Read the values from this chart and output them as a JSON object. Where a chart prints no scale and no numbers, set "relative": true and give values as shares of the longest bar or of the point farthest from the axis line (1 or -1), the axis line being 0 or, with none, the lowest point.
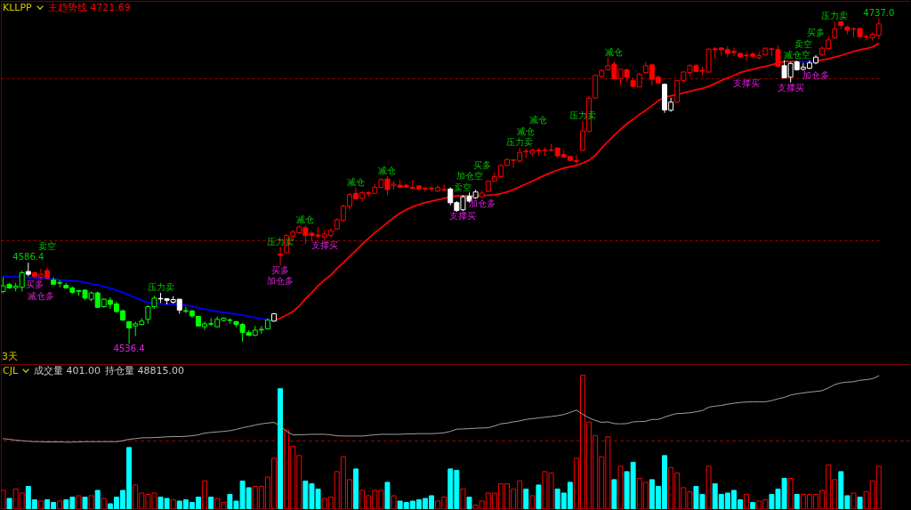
{
  "chart_data": [
    {
      "type": "candlestick",
      "title": "KLLPP",
      "legend": "top left",
      "grid": "y",
      "tick_labels": false,
      "categories": [
        null,
        null,
        null,
        null,
        null,
        null,
        null,
        null,
        null,
        null,
        null,
        null,
        null,
        null,
        null,
        null,
        null,
        null,
        null,
        null,
        null,
        null,
        null,
        null,
        null,
        null,
        null,
        null,
        null,
        null,
        null,
        null,
        null,
        null,
        null,
        null,
        null,
        null,
        null,
        null,
        null,
        null,
        null,
        null,
        null,
        null,
        null,
        null,
        null,
        null,
        null,
        null,
        null,
        null,
        null,
        null,
        null,
        null,
        null,
        null,
        null,
        null,
        null,
        null,
        null,
        null,
        null,
        null,
        null,
        null,
        null,
        null,
        null,
        null,
        null,
        null,
        null,
        null,
        null,
        null,
        null,
        null,
        null,
        null,
        null,
        null,
        null,
        null,
        null,
        null,
        null,
        null,
        null,
        null,
        null,
        null,
        null,
        null,
        null,
        null,
        null,
        null,
        null,
        null,
        null,
        null,
        null,
        null,
        null,
        null,
        null,
        null,
        null,
        null,
        null,
        null,
        null,
        null,
        null,
        null,
        null,
        null,
        null,
        null,
        null,
        null,
        null,
        null,
        null,
        null,
        null,
        null,
        null,
        null,
        null,
        null,
        null,
        null,
        null,
        null
      ],
      "ylim": [
        4525,
        4748
      ],
      "yticks": [
        {
          "value": 4600,
          "label": null
        },
        {
          "value": 4700,
          "label": null
        }
      ],
      "ohlc": [
        [
          4568.7,
          4577.5,
          4567.6,
          4572.2
        ],
        [
          4573.1,
          4574.0,
          4570.4,
          4570.8
        ],
        [
          4571.0,
          4574.0,
          4568.7,
          4572.0
        ],
        [
          4571.3,
          4581.6,
          4568.7,
          4580.2
        ],
        [
          4581.0,
          4586.4,
          4578.0,
          4579.3
        ],
        [
          4580.2,
          4581.0,
          4577.0,
          4578.0
        ],
        [
          4577.5,
          4582.8,
          4575.6,
          4579.3
        ],
        [
          4581.6,
          4583.4,
          4576.3,
          4577.0
        ],
        [
          4575.7,
          4577.5,
          4572.7,
          4573.1
        ],
        [
          4573.8,
          4575.7,
          4571.3,
          4574.1
        ],
        [
          4572.5,
          4574.0,
          4570.4,
          4570.8
        ],
        [
          4570.8,
          4571.7,
          4567.4,
          4568.1
        ],
        [
          4568.8,
          4569.5,
          4566.0,
          4569.2
        ],
        [
          4569.5,
          4569.9,
          4563.3,
          4564.6
        ],
        [
          4563.9,
          4568.7,
          4562.5,
          4567.8
        ],
        [
          4567.8,
          4568.7,
          4558.6,
          4558.9
        ],
        [
          4559.3,
          4564.6,
          4558.6,
          4563.9
        ],
        [
          4563.3,
          4565.1,
          4558.0,
          4560.7
        ],
        [
          4561.0,
          4562.5,
          4555.4,
          4556.3
        ],
        [
          4556.8,
          4557.5,
          4550.4,
          4551.0
        ],
        [
          4550.1,
          4550.4,
          4536.4,
          4546.2
        ],
        [
          4547.4,
          4550.1,
          4541.2,
          4548.7
        ],
        [
          4548.3,
          4552.2,
          4547.9,
          4550.4
        ],
        [
          4551.5,
          4560.3,
          4548.7,
          4559.3
        ],
        [
          4559.3,
          4566.0,
          4558.0,
          4564.6
        ],
        [
          4564.4,
          4567.8,
          4561.6,
          4564.1
        ],
        [
          4564.2,
          4564.6,
          4560.7,
          4563.2
        ],
        [
          4562.1,
          4565.7,
          4561.0,
          4563.7
        ],
        [
          4563.9,
          4564.2,
          4555.0,
          4557.2
        ],
        [
          4556.8,
          4559.3,
          4555.4,
          4556.4
        ],
        [
          4556.6,
          4557.5,
          4552.2,
          4553.6
        ],
        [
          4553.3,
          4553.6,
          4546.9,
          4547.4
        ],
        [
          4546.9,
          4550.1,
          4544.8,
          4548.7
        ],
        [
          4548.8,
          4552.2,
          4547.4,
          4548.5
        ],
        [
          4546.9,
          4553.3,
          4546.5,
          4551.5
        ],
        [
          4550.8,
          4552.7,
          4550.1,
          4552.2
        ],
        [
          4551.1,
          4552.2,
          4548.7,
          4550.8
        ],
        [
          4550.1,
          4550.4,
          4546.5,
          4548.3
        ],
        [
          4548.3,
          4549.2,
          4537.7,
          4543.3
        ],
        [
          4543.3,
          4544.8,
          4541.2,
          4541.6
        ],
        [
          4541.6,
          4547.4,
          4541.2,
          4544.8
        ],
        [
          4544.9,
          4547.4,
          4542.6,
          4545.3
        ],
        [
          4545.6,
          4552.2,
          4545.1,
          4551.0
        ],
        [
          4550.4,
          4555.4,
          4550.1,
          4554.9
        ],
        [
          4591.7,
          4596.1,
          4584.6,
          4591.0
        ],
        [
          4592.6,
          4604.1,
          4592.2,
          4603.2
        ],
        [
          4602.8,
          4606.7,
          4599.6,
          4605.3
        ],
        [
          4604.9,
          4609.4,
          4604.1,
          4608.5
        ],
        [
          4608.0,
          4609.7,
          4597.9,
          4603.2
        ],
        [
          4604.6,
          4605.8,
          4600.0,
          4603.2
        ],
        [
          4603.5,
          4608.5,
          4601.4,
          4602.8
        ],
        [
          4602.3,
          4606.7,
          4600.5,
          4604.1
        ],
        [
          4603.2,
          4607.6,
          4602.3,
          4606.2
        ],
        [
          4607.2,
          4613.8,
          4606.7,
          4612.9
        ],
        [
          4612.6,
          4622.1,
          4612.0,
          4621.4
        ],
        [
          4621.2,
          4629.4,
          4619.1,
          4628.5
        ],
        [
          4629.2,
          4632.9,
          4625.3,
          4625.8
        ],
        [
          4626.2,
          4630.6,
          4624.4,
          4629.7
        ],
        [
          4629.0,
          4630.6,
          4627.1,
          4629.6
        ],
        [
          4629.2,
          4635.0,
          4628.8,
          4632.9
        ],
        [
          4632.9,
          4638.6,
          4632.4,
          4637.7
        ],
        [
          4638.1,
          4640.0,
          4628.0,
          4631.5
        ],
        [
          4634.2,
          4636.8,
          4631.5,
          4634.9
        ],
        [
          4634.3,
          4637.7,
          4632.4,
          4632.9
        ],
        [
          4634.2,
          4635.0,
          4632.7,
          4633.1
        ],
        [
          4632.9,
          4637.7,
          4632.0,
          4632.4
        ],
        [
          4633.8,
          4634.2,
          4631.1,
          4631.9
        ],
        [
          4632.4,
          4633.3,
          4630.3,
          4631.9
        ],
        [
          4632.4,
          4633.6,
          4630.3,
          4631.9
        ],
        [
          4630.6,
          4634.5,
          4630.1,
          4632.9
        ],
        [
          4631.3,
          4634.5,
          4630.1,
          4631.7
        ],
        [
          4631.9,
          4632.9,
          4621.8,
          4623.4
        ],
        [
          4623.5,
          4624.4,
          4617.9,
          4618.6
        ],
        [
          4619.1,
          4628.1,
          4618.2,
          4627.1
        ],
        [
          4627.4,
          4629.7,
          4623.5,
          4624.4
        ],
        [
          4626.5,
          4631.5,
          4625.8,
          4630.1
        ],
        [
          4627.1,
          4631.0,
          4626.2,
          4629.4
        ],
        [
          4630.6,
          4637.2,
          4630.1,
          4636.8
        ],
        [
          4636.8,
          4642.1,
          4636.5,
          4639.5
        ],
        [
          4639.5,
          4647.1,
          4639.1,
          4646.5
        ],
        [
          4646.5,
          4651.0,
          4646.0,
          4650.1
        ],
        [
          4649.6,
          4650.1,
          4644.8,
          4649.9
        ],
        [
          4649.2,
          4657.2,
          4648.1,
          4654.5
        ],
        [
          4655.2,
          4657.0,
          4651.0,
          4654.9
        ],
        [
          4654.0,
          4656.8,
          4651.9,
          4655.9
        ],
        [
          4655.8,
          4657.4,
          4652.7,
          4655.4
        ],
        [
          4655.6,
          4657.7,
          4652.2,
          4655.9
        ],
        [
          4655.8,
          4659.8,
          4655.0,
          4656.1
        ],
        [
          4657.2,
          4657.7,
          4651.0,
          4652.4
        ],
        [
          4653.1,
          4655.9,
          4651.0,
          4651.7
        ],
        [
          4651.9,
          4652.6,
          4649.2,
          4649.6
        ],
        [
          4649.0,
          4653.1,
          4647.4,
          4649.4
        ],
        [
          4655.8,
          4674.0,
          4655.4,
          4667.8
        ],
        [
          4667.4,
          4689.4,
          4666.9,
          4687.8
        ],
        [
          4688.1,
          4702.7,
          4687.6,
          4702.0
        ],
        [
          4701.4,
          4705.8,
          4700.5,
          4705.0
        ],
        [
          4705.5,
          4713.3,
          4705.0,
          4708.0
        ],
        [
          4709.0,
          4710.6,
          4699.6,
          4700.0
        ],
        [
          4700.0,
          4706.2,
          4695.9,
          4705.8
        ],
        [
          4705.5,
          4706.2,
          4697.9,
          4700.9
        ],
        [
          4698.8,
          4700.5,
          4695.1,
          4695.2
        ],
        [
          4694.9,
          4703.2,
          4694.7,
          4702.8
        ],
        [
          4703.7,
          4710.3,
          4703.2,
          4708.0
        ],
        [
          4708.5,
          4709.0,
          4695.8,
          4699.6
        ],
        [
          4700.9,
          4702.0,
          4696.6,
          4697.4
        ],
        [
          4696.5,
          4697.0,
          4678.9,
          4680.7
        ],
        [
          4680.5,
          4688.1,
          4679.6,
          4685.5
        ],
        [
          4685.5,
          4699.1,
          4685.0,
          4698.8
        ],
        [
          4698.8,
          4704.4,
          4697.0,
          4704.1
        ],
        [
          4703.7,
          4709.0,
          4701.4,
          4708.0
        ],
        [
          4708.0,
          4709.0,
          4704.1,
          4704.4
        ],
        [
          4705.1,
          4707.3,
          4702.0,
          4704.6
        ],
        [
          4704.1,
          4718.6,
          4703.7,
          4718.2
        ],
        [
          4718.4,
          4719.5,
          4712.0,
          4717.9
        ],
        [
          4718.9,
          4719.5,
          4714.3,
          4717.9
        ],
        [
          4717.9,
          4720.0,
          4713.3,
          4715.6
        ],
        [
          4716.8,
          4719.1,
          4713.8,
          4716.1
        ],
        [
          4715.6,
          4716.1,
          4712.9,
          4713.5
        ],
        [
          4714.2,
          4716.1,
          4711.0,
          4714.5
        ],
        [
          4715.2,
          4716.5,
          4713.5,
          4713.8
        ],
        [
          4712.9,
          4716.5,
          4711.7,
          4714.3
        ],
        [
          4714.7,
          4719.1,
          4714.3,
          4718.8
        ],
        [
          4718.4,
          4719.1,
          4713.8,
          4718.1
        ],
        [
          4717.9,
          4720.5,
          4707.1,
          4707.6
        ],
        [
          4708.0,
          4711.5,
          4700.2,
          4700.5
        ],
        [
          4700.9,
          4710.3,
          4697.7,
          4709.4
        ],
        [
          4710.3,
          4711.2,
          4705.0,
          4705.5
        ],
        [
          4705.8,
          4709.7,
          4705.0,
          4707.1
        ],
        [
          4706.4,
          4711.3,
          4705.8,
          4709.7
        ],
        [
          4709.7,
          4714.5,
          4708.9,
          4713.3
        ],
        [
          4714.7,
          4720.0,
          4713.8,
          4718.8
        ],
        [
          4718.6,
          4726.2,
          4718.2,
          4723.9
        ],
        [
          4725.3,
          4735.1,
          4724.4,
          4730.6
        ],
        [
          4735.1,
          4735.6,
          4730.6,
          4732.8
        ],
        [
          4731.9,
          4732.8,
          4727.4,
          4729.9
        ],
        [
          4730.5,
          4731.9,
          4725.3,
          4730.8
        ],
        [
          4731.0,
          4731.5,
          4725.3,
          4725.9
        ],
        [
          4725.7,
          4727.4,
          4723.6,
          4726.0
        ],
        [
          4725.3,
          4728.5,
          4723.6,
          4727.4
        ],
        [
          4726.7,
          4737.0,
          4724.4,
          4733.8
        ]
      ],
      "colors": [
        "#00ff00",
        "#00ff00",
        "#00ff00",
        "#00ff00",
        "#ffffff",
        "#ff0000",
        "#ff0000",
        "#ff0000",
        "#00ff00",
        "#00ff00",
        "#00ff00",
        "#00ff00",
        "#00ff00",
        "#00ff00",
        "#00ff00",
        "#00ff00",
        "#00ff00",
        "#00ff00",
        "#00ff00",
        "#00ff00",
        "#00ff00",
        "#00ff00",
        "#00ff00",
        "#00ff00",
        "#00ff00",
        "#ffffff",
        "#ffffff",
        "#ffffff",
        "#ffffff",
        "#00ff00",
        "#00ff00",
        "#00ff00",
        "#00ff00",
        "#00ff00",
        "#00ff00",
        "#00ff00",
        "#00ff00",
        "#00ff00",
        "#00ff00",
        "#00ff00",
        "#00ff00",
        "#00ff00",
        "#00ff00",
        "#ffffff",
        "#ff0000",
        "#ff0000",
        "#ff0000",
        "#ff0000",
        "#ff0000",
        "#ff0000",
        "#ff0000",
        "#ff0000",
        "#ff0000",
        "#ff0000",
        "#ff0000",
        "#ff0000",
        "#ff0000",
        "#ff0000",
        "#ff0000",
        "#ff0000",
        "#ff0000",
        "#ff0000",
        "#ff0000",
        "#ff0000",
        "#ff0000",
        "#ff0000",
        "#ff0000",
        "#ff0000",
        "#ff0000",
        "#ff0000",
        "#ff0000",
        "#ffffff",
        "#ffffff",
        "#ffffff",
        "#ffffff",
        "#ffffff",
        "#ff0000",
        "#ff0000",
        "#ff0000",
        "#ff0000",
        "#ff0000",
        "#ff0000",
        "#ff0000",
        "#ff0000",
        "#ff0000",
        "#ff0000",
        "#ff0000",
        "#ff0000",
        "#ff0000",
        "#ff0000",
        "#ff0000",
        "#ff0000",
        "#ff0000",
        "#ff0000",
        "#ff0000",
        "#ff0000",
        "#ff0000",
        "#ff0000",
        "#ff0000",
        "#ff0000",
        "#ff0000",
        "#ff0000",
        "#ff0000",
        "#ff0000",
        "#ff0000",
        "#ffffff",
        "#ffffff",
        "#ff0000",
        "#ff0000",
        "#ff0000",
        "#ff0000",
        "#ff0000",
        "#ff0000",
        "#ff0000",
        "#ff0000",
        "#ff0000",
        "#ff0000",
        "#ff0000",
        "#ff0000",
        "#ff0000",
        "#ff0000",
        "#ff0000",
        "#ff0000",
        "#ff0000",
        "#ffffff",
        "#ffffff",
        "#ffffff",
        "#ffffff",
        "#ffffff",
        "#ffffff",
        "#ff0000",
        "#ff0000",
        "#ff0000",
        "#ff0000",
        "#ff0000",
        "#ff0000",
        "#ff0000",
        "#ff0000",
        "#ff0000",
        "#ff0000"
      ],
      "series": [
        {
          "type": "line",
          "name": "主趋势线 4721.69",
          "color": "#ff0000",
          "values": [
            null,
            null,
            null,
            null,
            null,
            null,
            null,
            null,
            null,
            null,
            null,
            null,
            null,
            null,
            null,
            null,
            null,
            null,
            null,
            null,
            null,
            null,
            null,
            null,
            null,
            null,
            null,
            null,
            null,
            null,
            null,
            null,
            null,
            null,
            null,
            null,
            null,
            null,
            null,
            null,
            null,
            null,
            null,
            4550.6,
            4552.2,
            4554.1,
            4556.3,
            4559.6,
            4564.2,
            4568.1,
            4572.2,
            4575.7,
            4578.7,
            4582.8,
            4586.4,
            4590.3,
            4594.0,
            4597.9,
            4601.4,
            4605.0,
            4608.0,
            4611.1,
            4614.2,
            4617.0,
            4619.1,
            4620.9,
            4622.3,
            4623.5,
            4624.4,
            4625.3,
            4626.2,
            4627.1,
            4627.6,
            4627.8,
            4627.8,
            4627.6,
            4627.8,
            4628.0,
            4628.3,
            4629.0,
            4630.1,
            4631.5,
            4633.3,
            4635.0,
            4636.8,
            4638.6,
            4640.4,
            4642.1,
            4643.5,
            4644.8,
            4645.7,
            4646.5,
            4647.8,
            4649.6,
            4652.7,
            4657.2,
            4661.2,
            4665.1,
            4668.7,
            4672.2,
            4674.9,
            4677.9,
            4680.5,
            4683.4,
            4686.4,
            4688.5,
            4689.4,
            4690.3,
            4691.2,
            4692.2,
            4693.1,
            4694.0,
            4695.2,
            4697.0,
            4698.8,
            4700.5,
            4702.0,
            4703.7,
            4705.0,
            4705.8,
            4706.7,
            4707.6,
            4708.5,
            4709.7,
            4710.6,
            4710.6,
            4710.6,
            null,
            null,
            4710.8,
            4711.5,
            4712.2,
            4713.3,
            4714.3,
            4715.6,
            4716.8,
            4717.9,
            4718.6,
            4719.5,
            4721.69
          ]
        },
        {
          "type": "line",
          "color": "#0000ff",
          "values": [
            4578.0,
            4577.9,
            4577.7,
            4577.5,
            4577.2,
            4577.0,
            4576.8,
            4576.6,
            4576.3,
            4575.9,
            4575.6,
            4575.2,
            4574.9,
            4574.3,
            4573.4,
            4572.7,
            4571.7,
            4570.6,
            4569.4,
            4568.1,
            4566.4,
            4564.8,
            4563.3,
            4561.9,
            4561.2,
            4561.0,
            4560.9,
            4560.9,
            4560.7,
            4560.2,
            4559.5,
            4558.6,
            4557.7,
            4557.0,
            4556.4,
            4555.7,
            4555.2,
            4554.7,
            4554.1,
            4553.4,
            4552.5,
            4551.8,
            4551.1,
            4550.6,
            null,
            null,
            null,
            null,
            null,
            null,
            null,
            null,
            null,
            null,
            null,
            null,
            null,
            null,
            null,
            null,
            null,
            null,
            null,
            null,
            null,
            null,
            null,
            null,
            null,
            null,
            null,
            null,
            null,
            null,
            null,
            null,
            null,
            null,
            null,
            null,
            null,
            null,
            null,
            null,
            null,
            null,
            null,
            null,
            null,
            null,
            null,
            null,
            null,
            null,
            null,
            null,
            null,
            null,
            null,
            null,
            null,
            null,
            null,
            null,
            null,
            null,
            null,
            null,
            null,
            null,
            null,
            null,
            null,
            null,
            null,
            null,
            null,
            null,
            null,
            null,
            null,
            null,
            null,
            null,
            null,
            null,
            4710.6,
            4710.4,
            4710.4,
            4710.8,
            null,
            null,
            null,
            null,
            null,
            null,
            null,
            null,
            null,
            null
          ]
        }
      ],
      "annotations": [
        {
          "text": "4586.4",
          "y": 4586.4
        },
        {
          "text": "卖空",
          "y": 4583.4
        },
        {
          "text": "买多",
          "y": 4577.0
        },
        {
          "text": "减仓多",
          "y": 4575.6
        },
        {
          "text": "压力卖",
          "y": 4567.8
        },
        {
          "text": "4536.4",
          "y": 4536.4
        },
        {
          "text": "压力卖",
          "y": 4596.1
        },
        {
          "text": "买多",
          "y": 4584.6
        },
        {
          "text": "加仓多",
          "y": 4584.6
        },
        {
          "text": "减仓",
          "y": 4609.7
        },
        {
          "text": "支撑买",
          "y": 4600.5
        },
        {
          "text": "减仓",
          "y": 4632.9
        },
        {
          "text": "减仓",
          "y": 4640.0
        },
        {
          "text": "卖空",
          "y": 4628.1
        },
        {
          "text": "加仓空",
          "y": 4629.7
        },
        {
          "text": "买多",
          "y": 4631.0
        },
        {
          "text": "支撑买",
          "y": 4618.2
        },
        {
          "text": "加仓多",
          "y": 4626.2
        },
        {
          "text": "压力卖",
          "y": 4657.2
        },
        {
          "text": "减仓",
          "y": 4657.0
        },
        {
          "text": "减仓",
          "y": 4657.4
        },
        {
          "text": "压力卖",
          "y": 4674.0
        },
        {
          "text": "减仓",
          "y": 4710.6
        },
        {
          "text": "支撑买",
          "y": 4711.0
        },
        {
          "text": "支撑买",
          "y": 4697.7
        },
        {
          "text": "减仓空",
          "y": 4711.2
        },
        {
          "text": "卖空",
          "y": 4709.7
        },
        {
          "text": "买多",
          "y": 4714.5
        },
        {
          "text": "加仓多",
          "y": 4708.9
        },
        {
          "text": "压力卖",
          "y": 4735.1
        },
        {
          "text": "4737.0",
          "y": 4737.0
        },
        "3天"
      ]
    },
    {
      "type": "bar",
      "title": "CJL",
      "relative": true,
      "tick_labels": false,
      "categories": [
        null,
        null,
        null,
        null,
        null,
        null,
        null,
        null,
        null,
        null,
        null,
        null,
        null,
        null,
        null,
        null,
        null,
        null,
        null,
        null,
        null,
        null,
        null,
        null,
        null,
        null,
        null,
        null,
        null,
        null,
        null,
        null,
        null,
        null,
        null,
        null,
        null,
        null,
        null,
        null,
        null,
        null,
        null,
        null,
        null,
        null,
        null,
        null,
        null,
        null,
        null,
        null,
        null,
        null,
        null,
        null,
        null,
        null,
        null,
        null,
        null,
        null,
        null,
        null,
        null,
        null,
        null,
        null,
        null,
        null,
        null,
        null,
        null,
        null,
        null,
        null,
        null,
        null,
        null,
        null,
        null,
        null,
        null,
        null,
        null,
        null,
        null,
        null,
        null,
        null,
        null,
        null,
        null,
        null,
        null,
        null,
        null,
        null,
        null,
        null,
        null,
        null,
        null,
        null,
        null,
        null,
        null,
        null,
        null,
        null,
        null,
        null,
        null,
        null,
        null,
        null,
        null,
        null,
        null,
        null,
        null,
        null,
        null,
        null,
        null,
        null,
        null,
        null,
        null,
        null,
        null,
        null,
        null,
        null,
        null,
        null,
        null,
        null,
        null,
        null
      ],
      "series": [
        {
          "colors": [
            "#ff0000",
            "#00ffff",
            "#ff0000",
            "#ff0000",
            "#00ffff",
            "#00ffff",
            "#ff0000",
            "#00ffff",
            "#00ffff",
            "#ff0000",
            "#00ffff",
            "#00ffff",
            "#ff0000",
            "#00ffff",
            "#ff0000",
            "#00ffff",
            "#ff0000",
            "#00ffff",
            "#00ffff",
            "#00ffff",
            "#00ffff",
            "#ff0000",
            "#ff0000",
            "#ff0000",
            "#ff0000",
            "#00ffff",
            "#00ffff",
            "#ff0000",
            "#00ffff",
            "#00ffff",
            "#00ffff",
            "#00ffff",
            "#ff0000",
            "#00ffff",
            "#ff0000",
            "#ff0000",
            "#00ffff",
            "#00ffff",
            "#00ffff",
            "#00ffff",
            "#ff0000",
            "#ff0000",
            "#ff0000",
            "#ff0000",
            "#00ffff",
            "#ff0000",
            "#ff0000",
            "#ff0000",
            "#00ffff",
            "#00ffff",
            "#00ffff",
            "#ff0000",
            "#ff0000",
            "#ff0000",
            "#ff0000",
            "#ff0000",
            "#00ffff",
            "#ff0000",
            "#ff0000",
            "#ff0000",
            "#ff0000",
            "#00ffff",
            "#ff0000",
            "#00ffff",
            "#00ffff",
            "#00ffff",
            "#00ffff",
            "#00ffff",
            "#00ffff",
            "#ff0000",
            "#ff0000",
            "#00ffff",
            "#00ffff",
            "#ff0000",
            "#00ffff",
            "#ff0000",
            "#ff0000",
            "#ff0000",
            "#ff0000",
            "#ff0000",
            "#ff0000",
            "#ff0000",
            "#ff0000",
            "#00ffff",
            "#ff0000",
            "#00ffff",
            "#ff0000",
            "#ff0000",
            "#00ffff",
            "#00ffff",
            "#00ffff",
            "#ff0000",
            "#ff0000",
            "#ff0000",
            "#ff0000",
            "#ff0000",
            "#ff0000",
            "#00ffff",
            "#ff0000",
            "#00ffff",
            "#00ffff",
            "#ff0000",
            "#ff0000",
            "#00ffff",
            "#00ffff",
            "#00ffff",
            "#ff0000",
            "#ff0000",
            "#ff0000",
            "#ff0000",
            "#00ffff",
            "#00ffff",
            "#ff0000",
            "#00ffff",
            "#00ffff",
            "#00ffff",
            "#00ffff",
            "#00ffff",
            "#ff0000",
            "#00ffff",
            "#ff0000",
            "#ff0000",
            "#00ffff",
            "#00ffff",
            "#00ffff",
            "#ff0000",
            "#00ffff",
            "#ff0000",
            "#ff0000",
            "#ff0000",
            "#ff0000",
            "#ff0000",
            "#ff0000",
            "#00ffff",
            "#00ffff",
            "#ff0000",
            "#00ffff",
            "#ff0000",
            "#ff0000",
            "#ff0000"
          ],
          "values": [
            0.14,
            0.08,
            0.15,
            0.12,
            0.17,
            0.07,
            0.06,
            0.07,
            0.05,
            0.06,
            0.07,
            0.09,
            0.1,
            0.09,
            0.1,
            0.14,
            0.08,
            0.04,
            0.09,
            0.14,
            0.46,
            0.18,
            0.12,
            0.11,
            0.12,
            0.09,
            0.08,
            0.07,
            0.06,
            0.07,
            0.05,
            0.09,
            0.21,
            0.09,
            0.08,
            0.05,
            0.11,
            0.06,
            0.21,
            0.16,
            0.17,
            0.17,
            0.24,
            0.38,
            0.9,
            0.59,
            0.47,
            0.4,
            0.21,
            0.19,
            0.15,
            0.08,
            0.09,
            0.28,
            0.39,
            0.22,
            0.3,
            0.14,
            0.1,
            0.14,
            0.14,
            0.2,
            0.1,
            0.06,
            0.05,
            0.06,
            0.07,
            0.08,
            0.1,
            0.06,
            0.09,
            0.3,
            0.29,
            0.15,
            0.09,
            0.03,
            0.06,
            0.12,
            0.12,
            0.19,
            0.19,
            0.15,
            0.21,
            0.15,
            0.1,
            0.18,
            0.28,
            0.27,
            0.15,
            0.12,
            0.2,
            0.38,
            1,
            0.65,
            0.55,
            0.39,
            0.54,
            0.22,
            0.32,
            0.28,
            0.35,
            0.23,
            0.2,
            0.22,
            0.17,
            0.4,
            0.31,
            0.27,
            0.16,
            0.13,
            0.17,
            0.11,
            0.32,
            0.19,
            0.11,
            0.12,
            0.14,
            0.07,
            0.11,
            0.05,
            0.06,
            0.07,
            0.11,
            0.15,
            0.23,
            0.23,
            0.11,
            0.11,
            0.11,
            0.11,
            0.14,
            0.33,
            0.22,
            0.28,
            0.1,
            0.12,
            0.09,
            0.13,
            0.21,
            0.32
          ]
        },
        {
          "type": "line",
          "color": "#a0a0a0",
          "values": [
            0.526,
            0.522,
            0.515,
            0.511,
            0.507,
            0.504,
            0.504,
            0.502,
            0.502,
            0.502,
            0.5,
            0.5,
            0.502,
            0.504,
            0.504,
            0.504,
            0.504,
            0.504,
            0.504,
            0.511,
            0.522,
            0.526,
            0.533,
            0.533,
            0.535,
            0.537,
            0.54,
            0.542,
            0.542,
            0.544,
            0.548,
            0.555,
            0.568,
            0.573,
            0.577,
            0.581,
            0.586,
            0.595,
            0.608,
            0.617,
            0.628,
            0.637,
            0.643,
            0.648,
            0.621,
            0.581,
            0.555,
            0.555,
            0.557,
            0.559,
            0.559,
            0.559,
            0.555,
            0.548,
            0.546,
            0.546,
            0.546,
            0.546,
            0.551,
            0.555,
            0.559,
            0.559,
            0.559,
            0.559,
            0.562,
            0.562,
            0.564,
            0.564,
            0.564,
            0.566,
            0.57,
            0.581,
            0.597,
            0.599,
            0.601,
            0.604,
            0.606,
            0.608,
            0.621,
            0.637,
            0.643,
            0.652,
            0.659,
            0.67,
            0.676,
            0.681,
            0.687,
            0.692,
            0.698,
            0.707,
            0.722,
            0.74,
            0.709,
            0.681,
            0.663,
            0.648,
            0.652,
            0.639,
            0.637,
            0.639,
            0.652,
            0.654,
            0.656,
            0.67,
            0.67,
            0.687,
            0.703,
            0.714,
            0.716,
            0.72,
            0.727,
            0.736,
            0.762,
            0.769,
            0.775,
            0.784,
            0.791,
            0.797,
            0.8,
            0.802,
            0.802,
            0.802,
            0.811,
            0.824,
            0.835,
            0.852,
            0.861,
            0.868,
            0.874,
            0.879,
            0.885,
            0.905,
            0.93,
            0.943,
            0.949,
            0.952,
            0.963,
            0.967,
            0.974,
            0.996
          ]
        }
      ],
      "ref_lines": [
        {
          "axis": "y",
          "value": 0.509,
          "color": "#a00000",
          "line_style": "dashed"
        }
      ],
      "annotations": [
        "成交量 401.00",
        "持仓量 48815.00"
      ]
    }
  ]
}
